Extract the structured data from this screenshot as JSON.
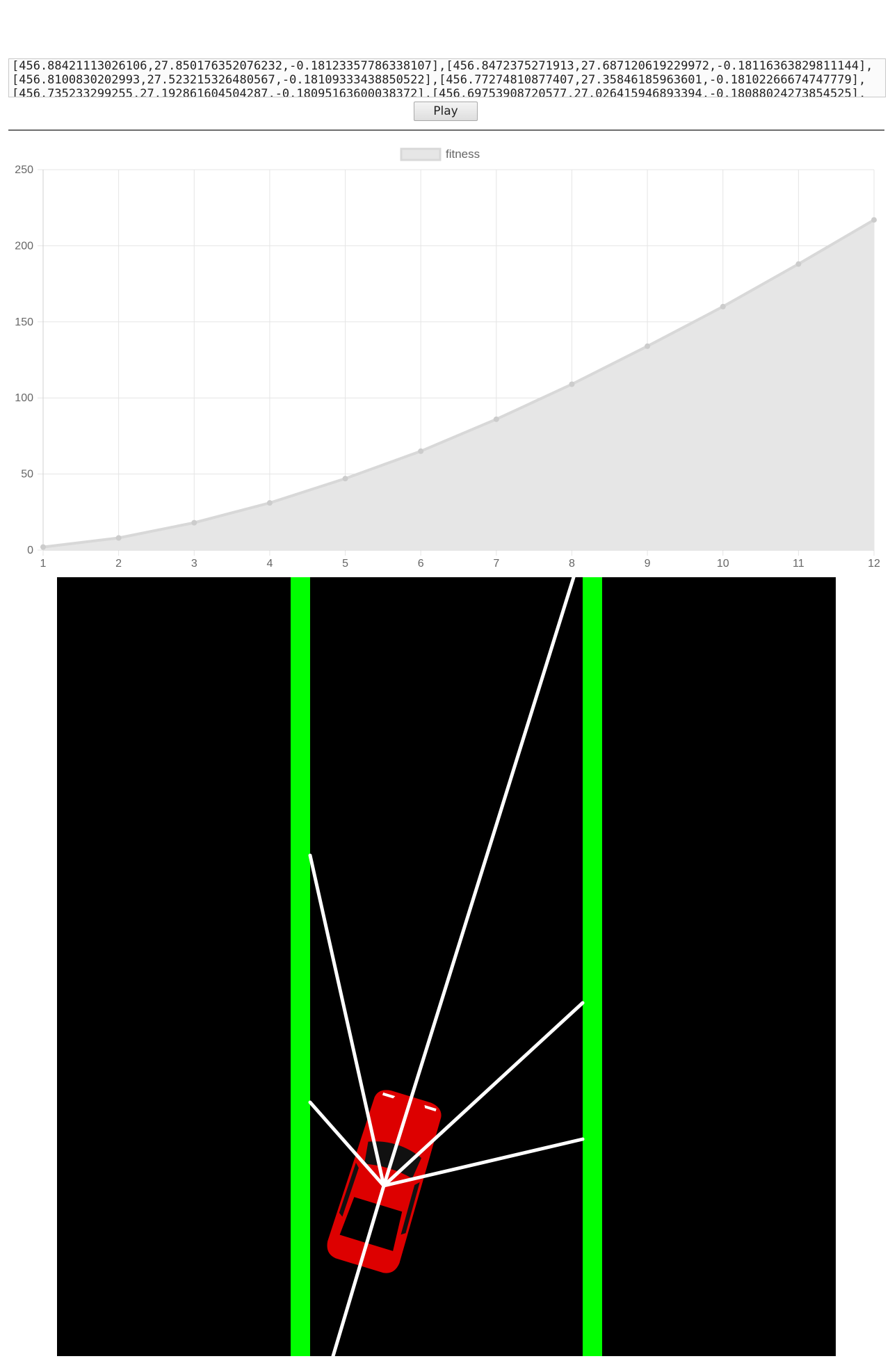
{
  "log": {
    "lines": [
      "[456.88421113026106,27.850176352076232,-0.18123357786338107],[456.8472375271913,27.687120619229972,-0.18116363829811144],",
      "[456.8100830202993,27.523215326480567,-0.18109333438850522],[456.77274810877407,27.35846185963601,-0.18102266674747779],",
      "[456.735233299255,27.192861604504287,-0.18095163600038372],[456.69753908720577,27.026415946893394,-0.18088024273854525],"
    ]
  },
  "controls": {
    "play_label": "Play"
  },
  "chart_data": {
    "type": "area",
    "legend": {
      "label": "fitness",
      "position": "top"
    },
    "x": [
      1,
      2,
      3,
      4,
      5,
      6,
      7,
      8,
      9,
      10,
      11,
      12
    ],
    "series": [
      {
        "name": "fitness",
        "values": [
          2,
          8,
          18,
          31,
          47,
          65,
          86,
          109,
          134,
          160,
          188,
          217
        ]
      }
    ],
    "xlim": [
      1,
      12
    ],
    "ylim": [
      0,
      250
    ],
    "yticks": [
      0,
      50,
      100,
      150,
      200,
      250
    ],
    "grid": true,
    "colors": {
      "fill": "#e6e6e6",
      "line": "#d8d8d8",
      "point": "#cccccc",
      "grid": "#e5e5e5"
    }
  },
  "simulation": {
    "colors": {
      "background": "#000000",
      "wall": "#00ff00",
      "car": "#dd0000",
      "sensor": "#ffffff"
    }
  }
}
